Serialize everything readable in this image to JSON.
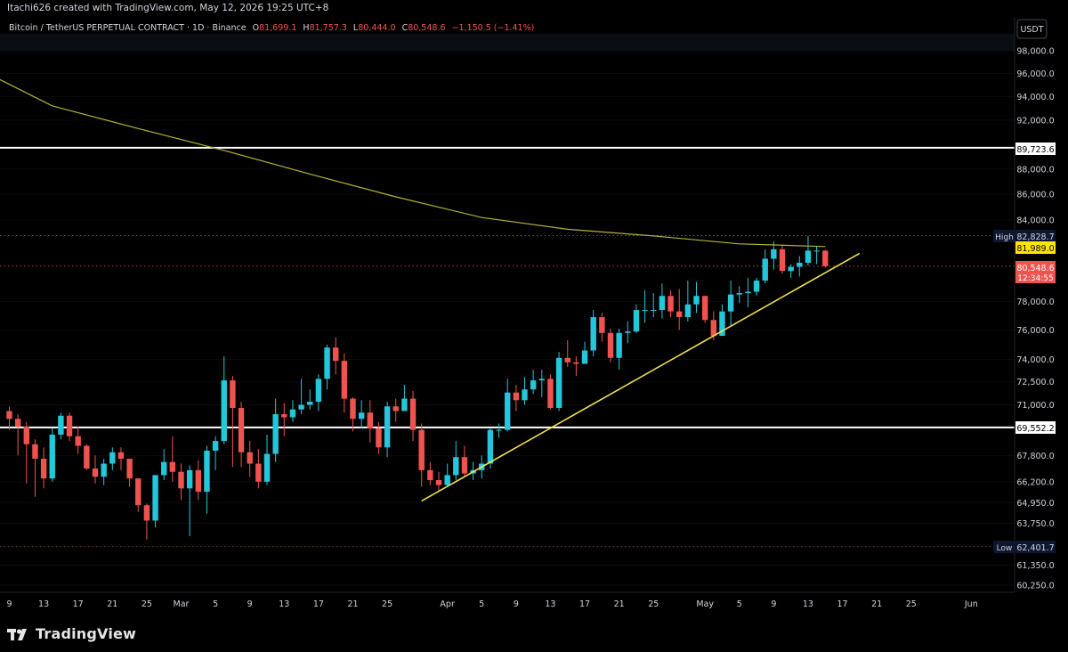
{
  "header": {
    "credit": "Itachi626 created with TradingView.com, May 12, 2026 19:25 UTC+8"
  },
  "legend": {
    "symbol": "Bitcoin / TetherUS PERPETUAL CONTRACT · 1D · Binance",
    "o_label": "O",
    "o_value": "81,699.1",
    "h_label": "H",
    "h_value": "81,757.3",
    "l_label": "L",
    "l_value": "80,444.0",
    "c_label": "C",
    "c_value": "80,548.6",
    "change": "−1,150.5 (−1.41%)"
  },
  "axis": {
    "currency": "USDT",
    "high_label": "High",
    "high_value": "82,828.7",
    "low_label": "Low",
    "low_value": "62,401.7",
    "ma_value": "81,989.0",
    "last_value": "80,548.6",
    "countdown": "12:34:55",
    "upper_line_value": "89,723.6",
    "lower_line_value": "69,552.2"
  },
  "brand": {
    "name": "TradingView"
  },
  "colors": {
    "up": "#26c6da",
    "down": "#ef5350",
    "ma": "#b5b336",
    "trendline": "#f3e04f",
    "level": "#ffffff"
  },
  "chart_data": {
    "type": "candlestick",
    "timeframe": "1D",
    "scale": "log",
    "y_ticks": [
      98000,
      96000,
      94000,
      92000,
      88000,
      86000,
      84000,
      78000,
      76000,
      74000,
      72500,
      71000,
      67800,
      66200,
      64950,
      63750,
      61350,
      60250
    ],
    "y_tick_labels": [
      "98,000.0",
      "96,000.0",
      "94,000.0",
      "92,000.0",
      "88,000.0",
      "86,000.0",
      "84,000.0",
      "78,000.0",
      "76,000.0",
      "74,000.0",
      "72,500.0",
      "71,000.0",
      "67,800.0",
      "66,200.0",
      "64,950.0",
      "63,750.0",
      "61,350.0",
      "60,250.0"
    ],
    "x_ticks": [
      {
        "label": "9",
        "i": 0
      },
      {
        "label": "13",
        "i": 4
      },
      {
        "label": "17",
        "i": 8
      },
      {
        "label": "21",
        "i": 12
      },
      {
        "label": "25",
        "i": 16
      },
      {
        "label": "Mar",
        "i": 20
      },
      {
        "label": "5",
        "i": 24
      },
      {
        "label": "9",
        "i": 28
      },
      {
        "label": "13",
        "i": 32
      },
      {
        "label": "17",
        "i": 36
      },
      {
        "label": "21",
        "i": 40
      },
      {
        "label": "25",
        "i": 44
      },
      {
        "label": "Apr",
        "i": 51
      },
      {
        "label": "5",
        "i": 55
      },
      {
        "label": "9",
        "i": 59
      },
      {
        "label": "13",
        "i": 63
      },
      {
        "label": "17",
        "i": 67
      },
      {
        "label": "21",
        "i": 71
      },
      {
        "label": "25",
        "i": 75
      },
      {
        "label": "May",
        "i": 81
      },
      {
        "label": "5",
        "i": 85
      },
      {
        "label": "9",
        "i": 89
      },
      {
        "label": "13",
        "i": 93
      },
      {
        "label": "17",
        "i": 97
      },
      {
        "label": "21",
        "i": 101
      },
      {
        "label": "25",
        "i": 105
      },
      {
        "label": "Jun",
        "i": 112
      }
    ],
    "candles": [
      [
        70600,
        70100,
        69550,
        70900,
        69400
      ],
      [
        70100,
        69600,
        68000,
        70400,
        67800
      ],
      [
        69600,
        68500,
        66900,
        69900,
        66100
      ],
      [
        68500,
        67600,
        66000,
        68800,
        65300
      ],
      [
        67600,
        66400,
        67700,
        68300,
        65800
      ],
      [
        66400,
        69100,
        69500,
        69500,
        66200
      ],
      [
        69100,
        70300,
        70000,
        70500,
        68800
      ],
      [
        70300,
        69000,
        69700,
        70500,
        68700
      ],
      [
        69000,
        68400,
        68600,
        69600,
        67900
      ],
      [
        68400,
        67000,
        67400,
        68500,
        66900
      ],
      [
        67000,
        66500,
        66700,
        67800,
        66100
      ],
      [
        66500,
        67300,
        67300,
        67600,
        66000
      ],
      [
        67300,
        68000,
        68000,
        68300,
        66900
      ],
      [
        68000,
        67600,
        67800,
        68300,
        66900
      ],
      [
        67600,
        66400,
        66500,
        67500,
        65900
      ],
      [
        66400,
        64800,
        65000,
        66400,
        64400
      ],
      [
        64800,
        63900,
        64400,
        64900,
        62800
      ],
      [
        63900,
        66600,
        66700,
        66600,
        63500
      ],
      [
        66600,
        67400,
        67600,
        68200,
        66300
      ],
      [
        67400,
        66800,
        67000,
        69000,
        66200
      ],
      [
        66800,
        65800,
        66300,
        67300,
        65100
      ],
      [
        65800,
        66900,
        67000,
        67200,
        63000
      ],
      [
        66900,
        65600,
        65800,
        67500,
        65100
      ],
      [
        65600,
        68100,
        68300,
        68400,
        64300
      ],
      [
        68100,
        68700,
        68800,
        69000,
        66900
      ],
      [
        68700,
        72600,
        72800,
        74200,
        68500
      ],
      [
        72600,
        70800,
        70900,
        72900,
        67100
      ],
      [
        70800,
        68000,
        68400,
        71200,
        67100
      ],
      [
        68000,
        67300,
        67400,
        68700,
        66500
      ],
      [
        67300,
        66200,
        66300,
        68200,
        65800
      ],
      [
        66200,
        67900,
        68000,
        69100,
        66000
      ],
      [
        67900,
        70400,
        70700,
        71400,
        67400
      ],
      [
        70400,
        70200,
        70400,
        71100,
        69000
      ],
      [
        70200,
        70700,
        70800,
        71300,
        69900
      ],
      [
        70700,
        71000,
        71100,
        72700,
        70400
      ],
      [
        71000,
        71200,
        71300,
        72000,
        70700
      ],
      [
        71200,
        72700,
        72700,
        73000,
        70600
      ],
      [
        72700,
        74800,
        75000,
        75000,
        72000
      ],
      [
        74800,
        73900,
        73700,
        75500,
        73000
      ],
      [
        73900,
        71400,
        71400,
        74400,
        70500
      ],
      [
        71400,
        70100,
        70200,
        71500,
        69300
      ],
      [
        70100,
        70500,
        70800,
        71300,
        69500
      ],
      [
        70500,
        69500,
        69400,
        71300,
        68600
      ],
      [
        69500,
        68300,
        68300,
        69900,
        67900
      ],
      [
        68300,
        70900,
        71000,
        71200,
        67700
      ],
      [
        70900,
        70600,
        70600,
        71400,
        69900
      ],
      [
        70600,
        71400,
        71500,
        72300,
        70600
      ],
      [
        71400,
        69400,
        69500,
        71900,
        68700
      ],
      [
        69400,
        66900,
        66900,
        69800,
        65900
      ],
      [
        66900,
        66300,
        66500,
        67400,
        66000
      ],
      [
        66300,
        66000,
        66100,
        66800,
        65600
      ],
      [
        66000,
        66600,
        66700,
        67300,
        65900
      ],
      [
        66600,
        67700,
        67800,
        68700,
        66300
      ],
      [
        67700,
        66700,
        66800,
        68400,
        66500
      ],
      [
        66700,
        66900,
        67000,
        67400,
        66300
      ],
      [
        66900,
        67300,
        67400,
        67800,
        66400
      ],
      [
        67300,
        69400,
        69500,
        69500,
        67000
      ],
      [
        69400,
        69400,
        69500,
        69800,
        68900
      ],
      [
        69400,
        71800,
        71800,
        72700,
        69300
      ],
      [
        71800,
        71300,
        71400,
        72300,
        70600
      ],
      [
        71300,
        72000,
        72000,
        72800,
        71000
      ],
      [
        72000,
        72600,
        72700,
        73300,
        71700
      ],
      [
        72600,
        72700,
        72800,
        73300,
        71500
      ],
      [
        72700,
        70800,
        70900,
        73000,
        70700
      ],
      [
        70800,
        74100,
        74200,
        74500,
        70600
      ],
      [
        74100,
        73800,
        73800,
        75300,
        73500
      ],
      [
        73800,
        73700,
        73600,
        74200,
        72900
      ],
      [
        73700,
        74600,
        74700,
        75200,
        73900
      ],
      [
        74600,
        76900,
        76900,
        77400,
        74200
      ],
      [
        76900,
        75800,
        75800,
        77200,
        75200
      ],
      [
        75800,
        74100,
        74300,
        76100,
        73800
      ],
      [
        74100,
        75800,
        75900,
        76100,
        73300
      ],
      [
        75800,
        75900,
        75900,
        76600,
        75100
      ],
      [
        75900,
        77400,
        77400,
        77800,
        75800
      ],
      [
        77400,
        77400,
        77500,
        78800,
        76500
      ],
      [
        77400,
        77400,
        77500,
        78600,
        76900
      ],
      [
        77400,
        78400,
        78400,
        79300,
        76800
      ],
      [
        78400,
        77300,
        77300,
        78800,
        76900
      ],
      [
        77300,
        76900,
        77200,
        78900,
        76000
      ],
      [
        76900,
        77800,
        77800,
        79500,
        76600
      ],
      [
        77800,
        78400,
        78400,
        79400,
        77200
      ],
      [
        78400,
        76700,
        76700,
        78400,
        76500
      ],
      [
        76700,
        75600,
        75500,
        77300,
        75300
      ],
      [
        75600,
        77300,
        77300,
        77800,
        75700
      ],
      [
        77300,
        78500,
        78500,
        79500,
        76300
      ],
      [
        78500,
        78600,
        78700,
        79100,
        77900
      ],
      [
        78600,
        78700,
        78800,
        79700,
        77600
      ],
      [
        78700,
        79500,
        79500,
        79700,
        78400
      ],
      [
        79500,
        81100,
        81200,
        81800,
        79300
      ],
      [
        81100,
        81800,
        81900,
        82400,
        80300
      ],
      [
        81800,
        80200,
        80300,
        82100,
        80000
      ],
      [
        80200,
        80500,
        80400,
        80700,
        79700
      ],
      [
        80500,
        80800,
        80800,
        81300,
        79800
      ],
      [
        80800,
        81700,
        81600,
        82800,
        80600
      ],
      [
        81700,
        81700,
        81700,
        82000,
        80700
      ],
      [
        81700,
        80549,
        80444,
        81757,
        80444
      ]
    ],
    "ma_points": [
      [
        -2,
        95800
      ],
      [
        5,
        93200
      ],
      [
        15,
        91300
      ],
      [
        25,
        89500
      ],
      [
        35,
        87600
      ],
      [
        45,
        85800
      ],
      [
        55,
        84200
      ],
      [
        65,
        83300
      ],
      [
        75,
        82800
      ],
      [
        85,
        82200
      ],
      [
        95,
        82000
      ]
    ],
    "trendline": [
      [
        48,
        65050
      ],
      [
        99,
        81500
      ]
    ],
    "horizontal_levels": [
      89723.6,
      69552.2
    ]
  }
}
